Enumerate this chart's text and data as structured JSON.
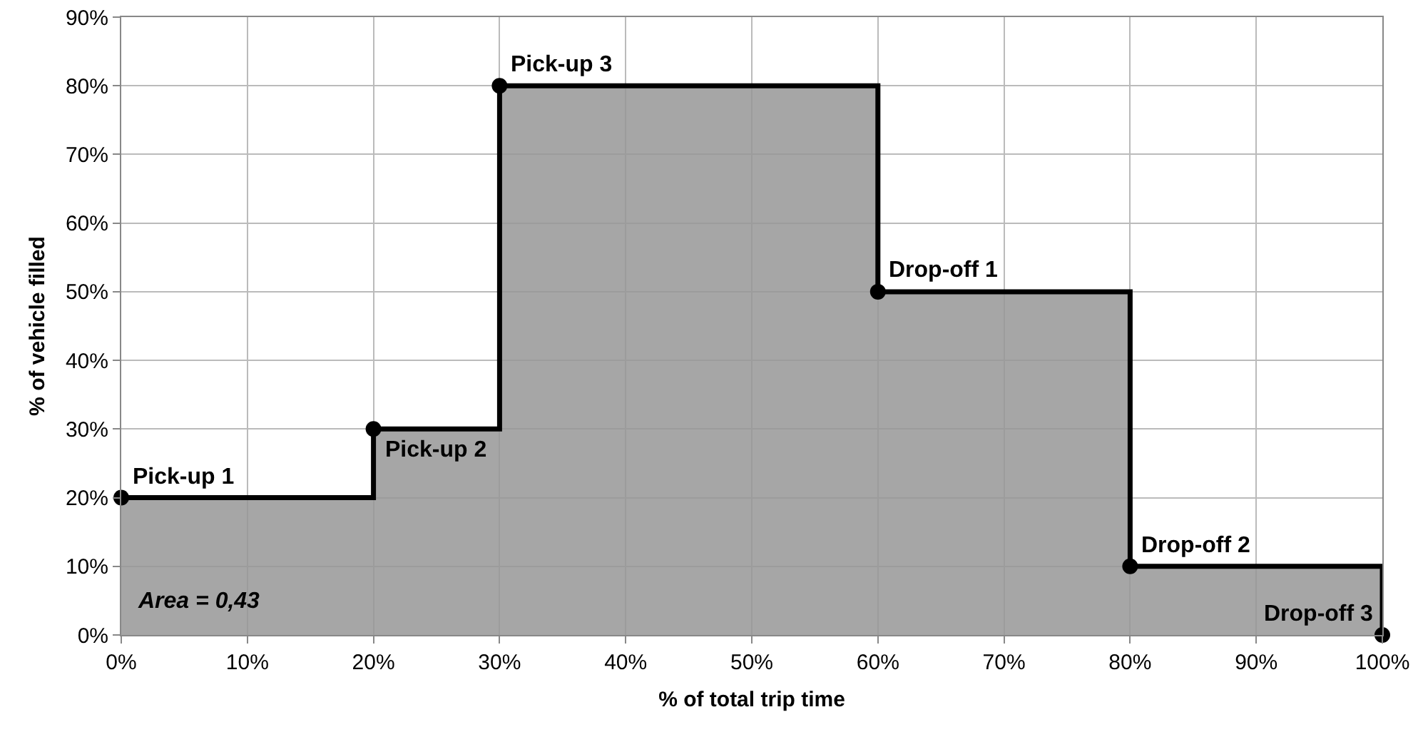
{
  "chart_data": {
    "type": "step",
    "xlabel": "% of total trip time",
    "ylabel": "% of vehicle filled",
    "x": [
      0,
      20,
      30,
      60,
      80,
      100
    ],
    "series": [
      {
        "color": "#000000",
        "values": [
          20,
          30,
          80,
          50,
          10,
          0
        ]
      }
    ],
    "xlim": [
      0,
      100
    ],
    "xticks": [
      {
        "value": 0,
        "label": "0%"
      },
      {
        "value": 10,
        "label": "10%"
      },
      {
        "value": 20,
        "label": "20%"
      },
      {
        "value": 30,
        "label": "30%"
      },
      {
        "value": 40,
        "label": "40%"
      },
      {
        "value": 50,
        "label": "50%"
      },
      {
        "value": 60,
        "label": "60%"
      },
      {
        "value": 70,
        "label": "70%"
      },
      {
        "value": 80,
        "label": "80%"
      },
      {
        "value": 90,
        "label": "90%"
      },
      {
        "value": 100,
        "label": "100%"
      }
    ],
    "ylim": [
      0,
      90
    ],
    "yticks": [
      {
        "value": 0,
        "label": "0%"
      },
      {
        "value": 10,
        "label": "10%"
      },
      {
        "value": 20,
        "label": "20%"
      },
      {
        "value": 30,
        "label": "30%"
      },
      {
        "value": 40,
        "label": "40%"
      },
      {
        "value": 50,
        "label": "50%"
      },
      {
        "value": 60,
        "label": "60%"
      },
      {
        "value": 70,
        "label": "70%"
      },
      {
        "value": 80,
        "label": "80%"
      },
      {
        "value": 90,
        "label": "90%"
      }
    ],
    "grid": true,
    "marker": "circle",
    "line_style": "solid",
    "annotations": [
      {
        "text": "Pick-up 1",
        "x": 0,
        "y": 20
      },
      {
        "text": "Pick-up 2",
        "x": 20,
        "y": 30
      },
      {
        "text": "Pick-up 3",
        "x": 30,
        "y": 80
      },
      {
        "text": "Drop-off 1",
        "x": 60,
        "y": 50
      },
      {
        "text": "Drop-off 2",
        "x": 80,
        "y": 10
      },
      {
        "text": "Drop-off 3",
        "x": 100,
        "y": 0
      },
      "Area = 0,43"
    ]
  }
}
